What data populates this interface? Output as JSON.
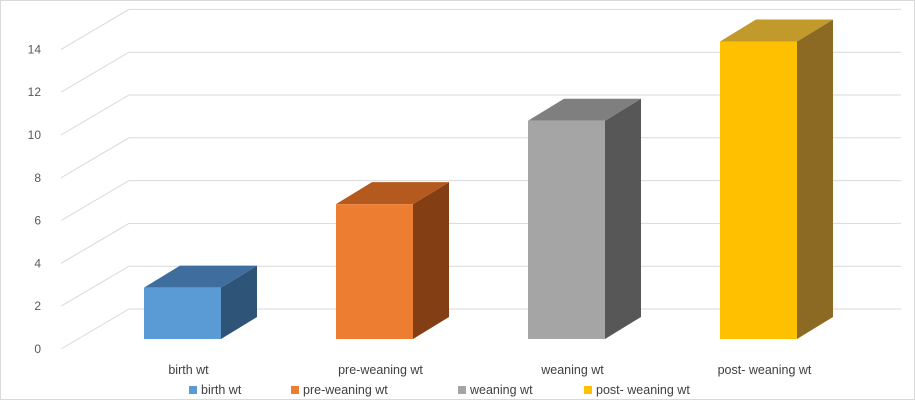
{
  "chart_data": {
    "type": "bar",
    "style": "3d-column",
    "categories": [
      "birth wt",
      "pre-weaning wt",
      "weaning wt",
      "post- weaning wt"
    ],
    "values": [
      2.4,
      6.3,
      10.2,
      13.9
    ],
    "ylim": [
      0,
      14
    ],
    "yticks": [
      "0",
      "2",
      "4",
      "6",
      "8",
      "10",
      "12",
      "14"
    ],
    "grid": true,
    "legend": {
      "position": "bottom",
      "entries": [
        "birth wt",
        "pre-weaning wt",
        "weaning wt",
        "post- weaning wt"
      ]
    },
    "colors": {
      "front": [
        "#5b9bd5",
        "#ed7d31",
        "#a5a5a5",
        "#ffc000"
      ],
      "side": [
        "#2e5477",
        "#843e13",
        "#575757",
        "#8c6a24"
      ],
      "top": [
        "#3f6e9e",
        "#b55a1e",
        "#7f7f7f",
        "#c29a2c"
      ]
    }
  }
}
